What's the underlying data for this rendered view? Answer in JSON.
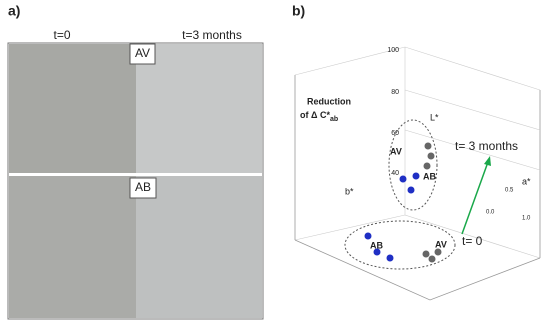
{
  "panel_a": {
    "label": "a)",
    "column_titles": [
      "t=0",
      "t=3 months"
    ],
    "samples": [
      "AV",
      "AB"
    ]
  },
  "panel_b": {
    "label": "b)",
    "z_ticks": [
      "100",
      "80",
      "60",
      "40"
    ],
    "title_line1": "Reduction",
    "title_line2": "of  Δ C*",
    "title_subscript": "ab",
    "annotations": {
      "top_time": "t=  3 months",
      "bottom_time": "t= 0",
      "top_av": "AV",
      "top_ab": "AB",
      "bottom_ab": "AB",
      "bottom_av": "AV"
    },
    "axis_labels": [
      "L*",
      "a*",
      "b*"
    ],
    "axis_ticks": [
      "0.0",
      "0.5",
      "1.0"
    ]
  }
}
